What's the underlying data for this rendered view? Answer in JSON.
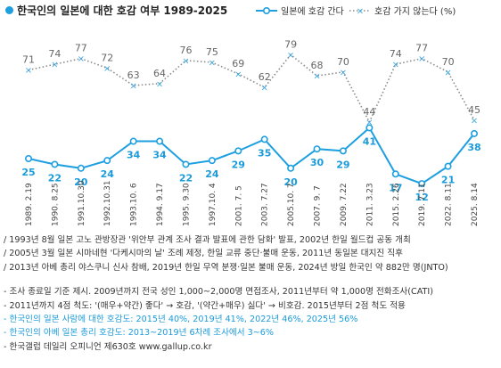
{
  "title": "한국인의 일본에 대한 호감 여부 1989-2025",
  "colors": {
    "favorable": "#1e9fe0",
    "unfavorable": "#8a8a8a",
    "favorable_label": "#1a9bdb"
  },
  "chart_data": {
    "type": "line",
    "title": "한국인의 일본에 대한 호감 여부 1989-2025",
    "categories": [
      "1989. 2.19",
      "1990. 8.25",
      "1991.10.30",
      "1992.10.31",
      "1993.10. 6",
      "1994. 9.17",
      "1995. 9.30",
      "1997.10. 4",
      "2001. 7. 5",
      "2003. 7.27",
      "2005.10. 7",
      "2007. 9. 7",
      "2009. 7.22",
      "2011. 3.23",
      "2015. 2.26",
      "2019. 7.11",
      "2022. 8.11",
      "2025. 8.14"
    ],
    "series": [
      {
        "name": "일본에 호감 간다",
        "style": "solid",
        "values": [
          25,
          22,
          20,
          24,
          34,
          34,
          22,
          24,
          29,
          35,
          20,
          30,
          29,
          41,
          17,
          12,
          21,
          38
        ]
      },
      {
        "name": "호감 가지 않는다 (%)",
        "style": "dotted",
        "values": [
          71,
          74,
          77,
          72,
          63,
          64,
          76,
          75,
          69,
          62,
          79,
          68,
          70,
          44,
          74,
          77,
          70,
          45
        ]
      }
    ],
    "xlabel": "",
    "ylabel": "",
    "ylim": [
      0,
      100
    ],
    "grid": false,
    "legend": "top-right"
  },
  "notes": {
    "events": [
      "/ 1993년 8월 일본 고노 관방장관 '위안부 관계 조사 결과 발표에 관한 담화' 발표, 2002년 한일 월드컵 공동 개최",
      "/ 2005년 3월 일본 시마네현 '다케시마의 날' 조례 제정, 한일 교류 중단·불매 운동, 2011년 동일본 대지진 직후",
      "/ 2013년 아베 총리 야스쿠니 신사 참배, 2019년 한일 무역 분쟁·일본 불매 운동, 2024년 방일 한국인 약 882만 명(JNTO)"
    ],
    "method": [
      "- 조사 종료일 기준 제시. 2009년까지 전국 성인 1,000~2,000명 면접조사, 2011년부터 약 1,000명 전화조사(CATI)",
      "- 2011년까지 4점 척도: '(매우+약간) 좋다' → 호감, '(약간+매우) 싫다' → 비호감. 2015년부터 2점 척도 적용",
      "- 한국인의 일본 사람에 대한 호감도: 2015년 40%, 2019년 41%, 2022년 46%, 2025년 56%",
      "- 한국인의 아베 일본 총리 호감도: 2013~2019년 6차례 조사에서 3~6%",
      "- 한국갤럽 데일리 오피니언 제630호 www.gallup.co.kr"
    ]
  }
}
